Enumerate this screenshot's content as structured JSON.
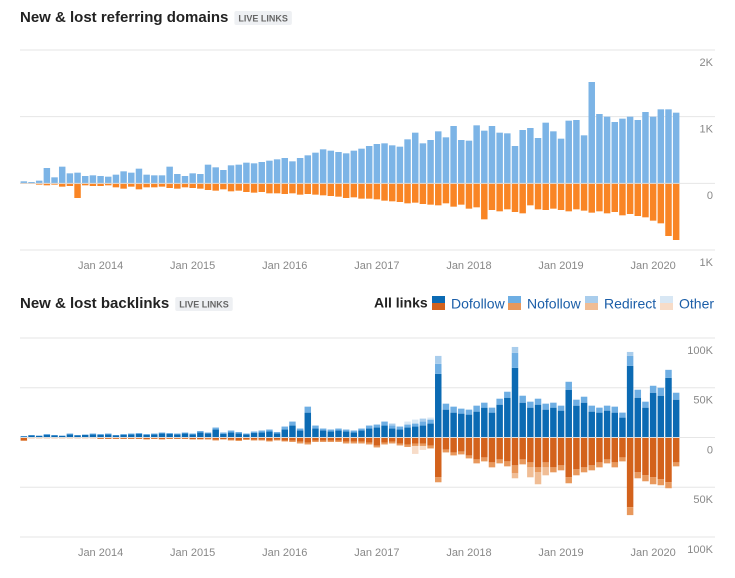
{
  "chart_data": [
    {
      "type": "bar",
      "title": "New & lost referring domains",
      "badge": "LIVE LINKS",
      "categories": [
        null,
        null,
        null,
        null,
        null,
        null,
        null,
        null,
        null,
        null,
        "Jan 2014",
        null,
        null,
        null,
        null,
        null,
        null,
        null,
        null,
        null,
        null,
        null,
        "Jan 2015",
        null,
        null,
        null,
        null,
        null,
        null,
        null,
        null,
        null,
        null,
        null,
        "Jan 2016",
        null,
        null,
        null,
        null,
        null,
        null,
        null,
        null,
        null,
        null,
        null,
        "Jan 2017",
        null,
        null,
        null,
        null,
        null,
        null,
        null,
        null,
        null,
        null,
        null,
        "Jan 2018",
        null,
        null,
        null,
        null,
        null,
        null,
        null,
        null,
        null,
        null,
        null,
        "Jan 2019",
        null,
        null,
        null,
        null,
        null,
        null,
        null,
        null,
        null,
        null,
        null,
        "Jan 2020",
        null,
        null,
        null
      ],
      "color": "#7cb4e6",
      "lost_color": "#f98525",
      "values": [
        30,
        20,
        40,
        230,
        90,
        250,
        150,
        160,
        110,
        120,
        110,
        100,
        130,
        180,
        160,
        220,
        130,
        120,
        120,
        250,
        140,
        110,
        150,
        140,
        280,
        240,
        200,
        270,
        280,
        310,
        300,
        320,
        340,
        360,
        380,
        330,
        380,
        420,
        460,
        510,
        490,
        470,
        450,
        490,
        520,
        560,
        590,
        600,
        570,
        550,
        660,
        760,
        600,
        650,
        780,
        690,
        860,
        650,
        640,
        870,
        790,
        860,
        760,
        750,
        560,
        800,
        830,
        680,
        910,
        780,
        670,
        940,
        950,
        720,
        1520,
        1040,
        1000,
        920,
        970,
        1000,
        950,
        1070,
        1000,
        1110,
        1110,
        1060
      ],
      "lost_values": [
        -10,
        -10,
        -20,
        -30,
        -20,
        -50,
        -40,
        -220,
        -30,
        -40,
        -40,
        -30,
        -60,
        -80,
        -50,
        -90,
        -60,
        -60,
        -50,
        -70,
        -80,
        -60,
        -70,
        -80,
        -100,
        -110,
        -90,
        -120,
        -110,
        -130,
        -140,
        -130,
        -150,
        -150,
        -160,
        -150,
        -170,
        -160,
        -170,
        -180,
        -190,
        -200,
        -220,
        -210,
        -230,
        -230,
        -240,
        -260,
        -270,
        -280,
        -300,
        -290,
        -310,
        -320,
        -330,
        -300,
        -350,
        -320,
        -380,
        -360,
        -540,
        -400,
        -420,
        -390,
        -430,
        -450,
        -330,
        -390,
        -400,
        -380,
        -400,
        -420,
        -390,
        -410,
        -440,
        -420,
        -450,
        -430,
        -480,
        -460,
        -490,
        -510,
        -560,
        -600,
        -790,
        -850
      ],
      "ylim": [
        -1000,
        2000
      ],
      "yticks": [
        {
          "value": 2000,
          "label": "2K"
        },
        {
          "value": 1000,
          "label": "1K"
        },
        0,
        {
          "value": -1000,
          "label": "1K"
        }
      ],
      "grid": true
    },
    {
      "type": "stacked_bar",
      "title": "New & lost backlinks",
      "badge": "LIVE LINKS",
      "filter_label": "All links",
      "categories": [
        null,
        null,
        null,
        null,
        null,
        null,
        null,
        null,
        null,
        null,
        "Jan 2014",
        null,
        null,
        null,
        null,
        null,
        null,
        null,
        null,
        null,
        null,
        null,
        "Jan 2015",
        null,
        null,
        null,
        null,
        null,
        null,
        null,
        null,
        null,
        null,
        null,
        "Jan 2016",
        null,
        null,
        null,
        null,
        null,
        null,
        null,
        null,
        null,
        null,
        null,
        "Jan 2017",
        null,
        null,
        null,
        null,
        null,
        null,
        null,
        null,
        null,
        null,
        null,
        "Jan 2018",
        null,
        null,
        null,
        null,
        null,
        null,
        null,
        null,
        null,
        null,
        null,
        "Jan 2019",
        null,
        null,
        null,
        null,
        null,
        null,
        null,
        null,
        null,
        null,
        null,
        "Jan 2020",
        null,
        null,
        null
      ],
      "series": [
        {
          "name": "Dofollow",
          "color": "#0b6ab3",
          "lost_color": "#d3621c",
          "values": [
            1000,
            2000,
            1500,
            2500,
            2000,
            1500,
            3000,
            2000,
            2500,
            3000,
            2500,
            3000,
            2000,
            2500,
            3000,
            3500,
            2500,
            3000,
            4000,
            3500,
            3000,
            4000,
            3000,
            5000,
            4000,
            8000,
            3500,
            5000,
            4000,
            3000,
            4500,
            5000,
            6000,
            4000,
            8000,
            12000,
            7000,
            25000,
            9000,
            7000,
            6000,
            7000,
            6000,
            5000,
            7000,
            9000,
            10000,
            12000,
            9000,
            8000,
            10000,
            11000,
            12000,
            14000,
            64000,
            28000,
            25000,
            24000,
            23000,
            26000,
            30000,
            25000,
            33000,
            40000,
            70000,
            35000,
            30000,
            33000,
            28000,
            30000,
            27000,
            48000,
            32000,
            35000,
            26000,
            25000,
            27000,
            25000,
            20000,
            72000,
            40000,
            30000,
            45000,
            42000,
            60000,
            38000
          ],
          "lost_values": [
            -3000,
            -500,
            -500,
            -500,
            -500,
            -500,
            -500,
            -500,
            -500,
            -500,
            -1000,
            -1000,
            -1000,
            -1000,
            -1000,
            -1000,
            -1500,
            -1000,
            -1500,
            -1000,
            -1000,
            -1000,
            -1500,
            -1500,
            -1000,
            -2000,
            -1500,
            -2000,
            -2500,
            -1500,
            -2000,
            -2000,
            -3000,
            -2000,
            -3000,
            -3000,
            -4000,
            -5000,
            -3000,
            -3000,
            -3000,
            -3000,
            -4000,
            -4000,
            -4000,
            -5000,
            -8000,
            -5000,
            -4000,
            -6000,
            -7000,
            -6000,
            -6000,
            -8000,
            -40000,
            -12000,
            -15000,
            -14000,
            -18000,
            -22000,
            -20000,
            -25000,
            -22000,
            -24000,
            -28000,
            -22000,
            -25000,
            -30000,
            -25000,
            -30000,
            -28000,
            -40000,
            -32000,
            -30000,
            -28000,
            -25000,
            -22000,
            -25000,
            -20000,
            -70000,
            -35000,
            -38000,
            -40000,
            -42000,
            -45000,
            -25000
          ]
        },
        {
          "name": "Nofollow",
          "color": "#6eaee3",
          "lost_color": "#e8985c",
          "values": [
            500,
            500,
            500,
            1000,
            500,
            500,
            1000,
            500,
            500,
            1000,
            1000,
            1000,
            500,
            1000,
            1000,
            1000,
            1000,
            1000,
            1000,
            1000,
            1000,
            1000,
            1000,
            1500,
            1000,
            2000,
            1500,
            2000,
            1500,
            1000,
            1500,
            2000,
            2000,
            1500,
            3000,
            4000,
            2000,
            6000,
            3000,
            2000,
            2000,
            2000,
            2000,
            2000,
            2000,
            3000,
            3000,
            4000,
            3000,
            3000,
            3000,
            3000,
            4000,
            4000,
            10000,
            6000,
            6000,
            5000,
            5000,
            6000,
            5000,
            5000,
            6000,
            6000,
            15000,
            7000,
            6000,
            6000,
            6000,
            5000,
            5000,
            8000,
            6000,
            6000,
            6000,
            5000,
            5000,
            6000,
            5000,
            10000,
            8000,
            6000,
            7000,
            8000,
            8000,
            7000
          ],
          "lost_values": [
            -300,
            -300,
            -300,
            -300,
            -300,
            -300,
            -300,
            -300,
            -300,
            -300,
            -500,
            -500,
            -500,
            -500,
            -500,
            -500,
            -500,
            -500,
            -500,
            -500,
            -500,
            -500,
            -500,
            -500,
            -1000,
            -1000,
            -500,
            -1000,
            -1000,
            -1000,
            -1000,
            -1000,
            -1000,
            -1000,
            -1000,
            -1500,
            -2000,
            -2000,
            -1500,
            -1500,
            -1500,
            -1500,
            -2000,
            -2000,
            -2000,
            -2000,
            -2000,
            -2000,
            -2000,
            -2000,
            -2500,
            -2500,
            -2500,
            -3000,
            -5000,
            -3000,
            -3000,
            -3000,
            -3000,
            -4000,
            -4000,
            -5000,
            -4000,
            -5000,
            -8000,
            -5000,
            -5000,
            -5000,
            -5000,
            -5000,
            -5000,
            -6000,
            -6000,
            -5000,
            -5000,
            -5000,
            -4000,
            -5000,
            -4000,
            -8000,
            -6000,
            -6000,
            -7000,
            -6000,
            -6000,
            -4000
          ]
        },
        {
          "name": "Redirect",
          "color": "#a9cdec",
          "lost_color": "#f0bd95",
          "values": [
            0,
            0,
            0,
            0,
            0,
            0,
            0,
            0,
            0,
            0,
            0,
            0,
            0,
            0,
            0,
            0,
            0,
            0,
            0,
            0,
            0,
            0,
            0,
            0,
            0,
            0,
            0,
            0,
            0,
            0,
            0,
            0,
            0,
            0,
            0,
            0,
            0,
            0,
            0,
            0,
            0,
            0,
            0,
            0,
            0,
            0,
            0,
            0,
            2000,
            0,
            0,
            0,
            3000,
            0,
            8000,
            0,
            0,
            0,
            0,
            0,
            0,
            0,
            0,
            0,
            6000,
            0,
            0,
            0,
            0,
            0,
            0,
            0,
            0,
            0,
            0,
            0,
            0,
            0,
            0,
            4000,
            0,
            0,
            0,
            0,
            0,
            0
          ],
          "lost_values": [
            0,
            0,
            0,
            0,
            0,
            0,
            0,
            0,
            0,
            0,
            0,
            0,
            0,
            0,
            0,
            0,
            0,
            0,
            0,
            0,
            0,
            0,
            0,
            0,
            0,
            0,
            0,
            0,
            0,
            0,
            0,
            0,
            0,
            0,
            0,
            0,
            0,
            0,
            0,
            0,
            0,
            0,
            0,
            0,
            0,
            0,
            0,
            0,
            0,
            0,
            0,
            0,
            0,
            0,
            0,
            0,
            0,
            0,
            0,
            0,
            0,
            0,
            0,
            0,
            -5000,
            0,
            -10000,
            -12000,
            -8000,
            0,
            0,
            0,
            0,
            0,
            0,
            0,
            0,
            0,
            0,
            0,
            0,
            0,
            0,
            0,
            0,
            0
          ]
        },
        {
          "name": "Other",
          "color": "#d8e7f4",
          "lost_color": "#f7dcc8",
          "values": [
            0,
            0,
            0,
            0,
            0,
            0,
            0,
            0,
            0,
            0,
            0,
            0,
            0,
            0,
            0,
            0,
            0,
            0,
            0,
            0,
            0,
            0,
            0,
            0,
            0,
            0,
            0,
            0,
            0,
            0,
            0,
            0,
            0,
            0,
            0,
            0,
            0,
            0,
            0,
            0,
            0,
            0,
            0,
            0,
            0,
            0,
            0,
            0,
            0,
            0,
            3000,
            4000,
            0,
            2000,
            0,
            0,
            0,
            0,
            0,
            0,
            0,
            0,
            0,
            0,
            0,
            0,
            0,
            0,
            0,
            0,
            0,
            0,
            0,
            0,
            0,
            0,
            0,
            0,
            0,
            0,
            0,
            0,
            0,
            0,
            0,
            0
          ],
          "lost_values": [
            0,
            0,
            0,
            0,
            0,
            0,
            0,
            0,
            0,
            0,
            0,
            0,
            0,
            0,
            0,
            0,
            0,
            0,
            0,
            0,
            0,
            0,
            0,
            0,
            0,
            0,
            0,
            0,
            0,
            0,
            0,
            0,
            0,
            0,
            0,
            0,
            0,
            0,
            0,
            0,
            0,
            0,
            0,
            0,
            0,
            0,
            0,
            0,
            0,
            0,
            0,
            -8000,
            -4000,
            0,
            0,
            0,
            0,
            0,
            0,
            0,
            0,
            0,
            0,
            0,
            0,
            0,
            0,
            0,
            0,
            0,
            0,
            0,
            0,
            0,
            0,
            0,
            0,
            0,
            0,
            0,
            0,
            0,
            0,
            0,
            0,
            0
          ]
        }
      ],
      "ylim": [
        -100000,
        100000
      ],
      "yticks": [
        {
          "value": 100000,
          "label": "100K"
        },
        {
          "value": 50000,
          "label": "50K"
        },
        0,
        {
          "value": -50000,
          "label": "50K"
        },
        {
          "value": -100000,
          "label": "100K"
        }
      ],
      "grid": true
    }
  ]
}
